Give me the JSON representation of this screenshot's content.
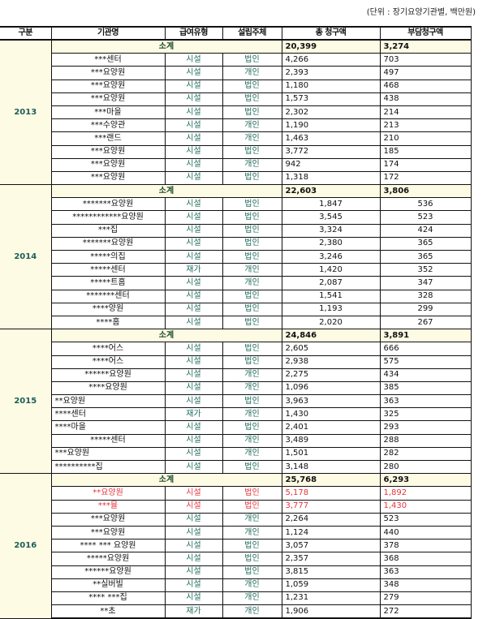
{
  "unit_note": "(단위 : 장기요양기관별, 백만원)",
  "headers": [
    "구분",
    "기관명",
    "급여유형",
    "설립주체",
    "총 청구액",
    "부담청구액"
  ],
  "highlight_color": "#e8333b",
  "groups": [
    {
      "year": "2013",
      "subtotal_label": "소계",
      "subtotal_total": "20,399",
      "subtotal_burden": "3,274",
      "rows": [
        {
          "name": "***센터",
          "type": "시설",
          "owner": "법인",
          "total": "4,266",
          "burden": "703"
        },
        {
          "name": "***요양원",
          "type": "시설",
          "owner": "개인",
          "total": "2,393",
          "burden": "497"
        },
        {
          "name": "***요양원",
          "type": "시설",
          "owner": "법인",
          "total": "1,180",
          "burden": "468"
        },
        {
          "name": "***요양원",
          "type": "시설",
          "owner": "법인",
          "total": "1,573",
          "burden": "438"
        },
        {
          "name": "***마을",
          "type": "시설",
          "owner": "법인",
          "total": "2,302",
          "burden": "214"
        },
        {
          "name": "***수양관",
          "type": "시설",
          "owner": "개인",
          "total": "1,190",
          "burden": "213"
        },
        {
          "name": "***랜드",
          "type": "시설",
          "owner": "개인",
          "total": "1,463",
          "burden": "210"
        },
        {
          "name": "***요양원",
          "type": "시설",
          "owner": "법인",
          "total": "3,772",
          "burden": "185"
        },
        {
          "name": "***요양원",
          "type": "시설",
          "owner": "개인",
          "total": "942",
          "burden": "174"
        },
        {
          "name": "***요양원",
          "type": "시설",
          "owner": "법인",
          "total": "1,318",
          "burden": "172"
        }
      ]
    },
    {
      "year": "2014",
      "subtotal_label": "소계",
      "subtotal_total": "22,603",
      "subtotal_burden": "3,806",
      "rows": [
        {
          "name": "*******요양원",
          "type": "시설",
          "owner": "법인",
          "total": "1,847",
          "burden": "536"
        },
        {
          "name": "************요양원",
          "type": "시설",
          "owner": "법인",
          "total": "3,545",
          "burden": "523"
        },
        {
          "name": "***집",
          "type": "시설",
          "owner": "법인",
          "total": "3,324",
          "burden": "424"
        },
        {
          "name": "*******요양원",
          "type": "시설",
          "owner": "법인",
          "total": "2,380",
          "burden": "365"
        },
        {
          "name": "*****의집",
          "type": "시설",
          "owner": "법인",
          "total": "3,246",
          "burden": "365"
        },
        {
          "name": "*****센터",
          "type": "재가",
          "owner": "개인",
          "total": "1,420",
          "burden": "352"
        },
        {
          "name": "*****트홈",
          "type": "시설",
          "owner": "개인",
          "total": "2,087",
          "burden": "347"
        },
        {
          "name": "*******센터",
          "type": "시설",
          "owner": "법인",
          "total": "1,541",
          "burden": "328"
        },
        {
          "name": "****양원",
          "type": "시설",
          "owner": "법인",
          "total": "1,193",
          "burden": "299"
        },
        {
          "name": "****홈",
          "type": "시설",
          "owner": "법인",
          "total": "2,020",
          "burden": "267"
        }
      ]
    },
    {
      "year": "2015",
      "subtotal_label": "소계",
      "subtotal_total": "24,846",
      "subtotal_burden": "3,891",
      "rows": [
        {
          "name": "****어스",
          "type": "시설",
          "owner": "법인",
          "total": "2,605",
          "burden": "666"
        },
        {
          "name": "****어스",
          "type": "시설",
          "owner": "법인",
          "total": "2,938",
          "burden": "575"
        },
        {
          "name": "******요양원",
          "type": "시설",
          "owner": "개인",
          "total": "2,275",
          "burden": "434"
        },
        {
          "name": "****요양원",
          "type": "시설",
          "owner": "개인",
          "total": "1,096",
          "burden": "385"
        },
        {
          "name": "**요양원",
          "type": "시설",
          "owner": "법인",
          "total": "3,963",
          "burden": "363"
        },
        {
          "name": "****센터",
          "type": "재가",
          "owner": "개인",
          "total": "1,430",
          "burden": "325"
        },
        {
          "name": "****마을",
          "type": "시설",
          "owner": "법인",
          "total": "2,401",
          "burden": "293"
        },
        {
          "name": "*****센터",
          "type": "시설",
          "owner": "개인",
          "total": "3,489",
          "burden": "288"
        },
        {
          "name": "***요양원",
          "type": "시설",
          "owner": "개인",
          "total": "1,501",
          "burden": "282"
        },
        {
          "name": "**********집",
          "type": "시설",
          "owner": "법인",
          "total": "3,148",
          "burden": "280"
        }
      ]
    },
    {
      "year": "2016",
      "subtotal_label": "소계",
      "subtotal_total": "25,768",
      "subtotal_burden": "6,293",
      "rows": [
        {
          "name": "**요양원",
          "type": "시설",
          "owner": "법인",
          "total": "5,178",
          "burden": "1,892",
          "highlight": true
        },
        {
          "name": "***뮬",
          "type": "시설",
          "owner": "법인",
          "total": "3,777",
          "burden": "1,430",
          "highlight": true
        },
        {
          "name": "***요양원",
          "type": "시설",
          "owner": "개인",
          "total": "2,264",
          "burden": "523"
        },
        {
          "name": "***요양원",
          "type": "시설",
          "owner": "개인",
          "total": "1,124",
          "burden": "440"
        },
        {
          "name": "**** *** 요양원",
          "type": "시설",
          "owner": "법인",
          "total": "3,057",
          "burden": "378"
        },
        {
          "name": "*****요양원",
          "type": "시설",
          "owner": "법인",
          "total": "2,357",
          "burden": "368"
        },
        {
          "name": "******요양원",
          "type": "시설",
          "owner": "법인",
          "total": "3,815",
          "burden": "363"
        },
        {
          "name": "**실버빌",
          "type": "시설",
          "owner": "개인",
          "total": "1,059",
          "burden": "348"
        },
        {
          "name": "**** ***집",
          "type": "시설",
          "owner": "개인",
          "total": "1,231",
          "burden": "279"
        },
        {
          "name": "**초",
          "type": "재가",
          "owner": "개인",
          "total": "1,906",
          "burden": "272"
        }
      ]
    }
  ]
}
